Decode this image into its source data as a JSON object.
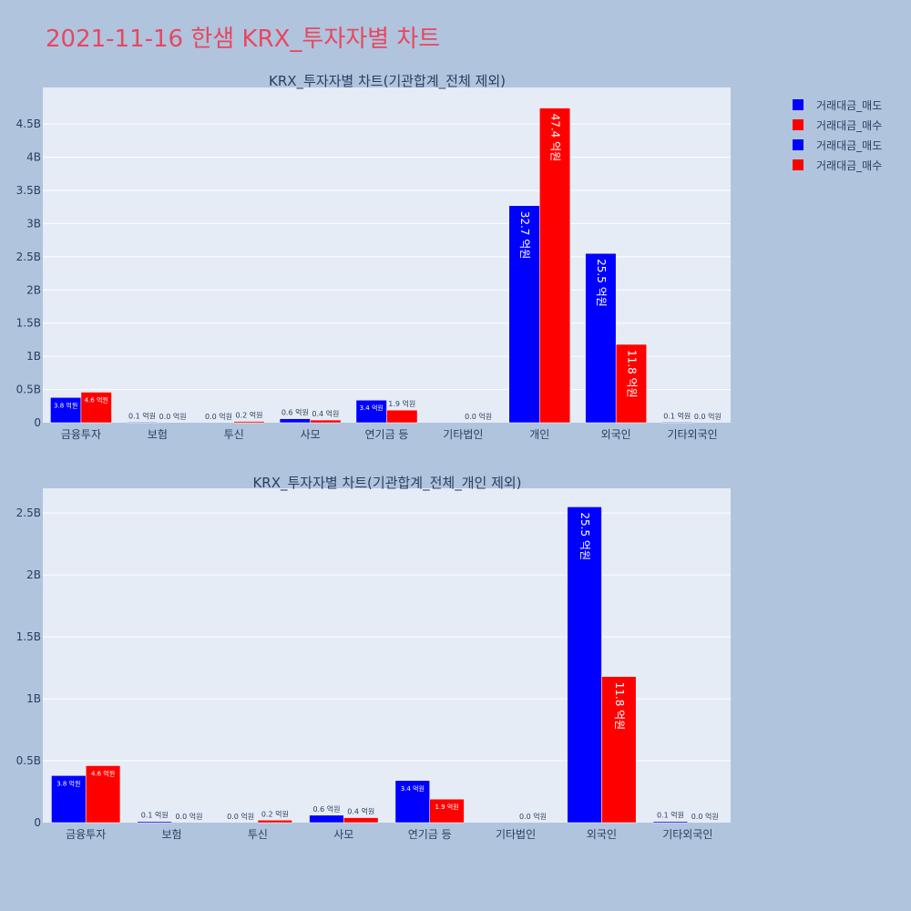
{
  "page": {
    "title": "2021-11-16 한샘 KRX_투자자별 차트"
  },
  "legend": [
    {
      "label": "거래대금_매도",
      "color": "#0000ff"
    },
    {
      "label": "거래대금_매수",
      "color": "#ff0000"
    },
    {
      "label": "거래대금_매도",
      "color": "#0000ff"
    },
    {
      "label": "거래대금_매수",
      "color": "#ff0000"
    }
  ],
  "chart_data": [
    {
      "type": "bar",
      "title": "KRX_투자자별 차트(기관합계_전체 제외)",
      "categories": [
        "금융투자",
        "보험",
        "투신",
        "사모",
        "연기금 등",
        "기타법인",
        "개인",
        "외국인",
        "기타외국인"
      ],
      "ylim": [
        0,
        5.05
      ],
      "yticks": [
        0,
        0.5,
        1,
        1.5,
        2,
        2.5,
        3,
        3.5,
        4,
        4.5
      ],
      "ytick_labels": [
        "0",
        "0.5B",
        "1B",
        "1.5B",
        "2B",
        "2.5B",
        "3B",
        "3.5B",
        "4B",
        "4.5B"
      ],
      "grid": true,
      "series": [
        {
          "name": "거래대금_매도",
          "color": "#0000ff",
          "values": [
            0.38,
            0.01,
            0.0,
            0.06,
            0.34,
            0.0,
            3.27,
            2.55,
            0.01
          ],
          "labels": [
            "3.8 억원",
            "0.1 억원",
            "0.0 억원",
            "0.6 억원",
            "3.4 억원",
            "",
            "32.7 억원",
            "25.5 억원",
            "0.1 억원"
          ]
        },
        {
          "name": "거래대금_매수",
          "color": "#ff0000",
          "values": [
            0.46,
            0.0,
            0.02,
            0.04,
            0.19,
            0.0,
            4.74,
            1.18,
            0.0
          ],
          "labels": [
            "4.6 억원",
            "0.0 억원",
            "0.2 억원",
            "0.4 억원",
            "1.9 억원",
            "0.0 억원",
            "47.4 억원",
            "11.8 억원",
            "0.0 억원"
          ]
        }
      ]
    },
    {
      "type": "bar",
      "title": "KRX_투자자별 차트(기관합계_전체_개인 제외)",
      "categories": [
        "금융투자",
        "보험",
        "투신",
        "사모",
        "연기금 등",
        "기타법인",
        "외국인",
        "기타외국인"
      ],
      "ylim": [
        0,
        2.7
      ],
      "yticks": [
        0,
        0.5,
        1,
        1.5,
        2,
        2.5
      ],
      "ytick_labels": [
        "0",
        "0.5B",
        "1B",
        "1.5B",
        "2B",
        "2.5B"
      ],
      "grid": true,
      "series": [
        {
          "name": "거래대금_매도",
          "color": "#0000ff",
          "values": [
            0.38,
            0.01,
            0.0,
            0.06,
            0.34,
            0.0,
            2.55,
            0.01
          ],
          "labels": [
            "3.8 억원",
            "0.1 억원",
            "0.0 억원",
            "0.6 억원",
            "3.4 억원",
            "",
            "25.5 억원",
            "0.1 억원"
          ]
        },
        {
          "name": "거래대금_매수",
          "color": "#ff0000",
          "values": [
            0.46,
            0.0,
            0.02,
            0.04,
            0.19,
            0.0,
            1.18,
            0.0
          ],
          "labels": [
            "4.6 억원",
            "0.0 억원",
            "0.2 억원",
            "0.4 억원",
            "1.9 억원",
            "0.0 억원",
            "11.8 억원",
            "0.0 억원"
          ]
        }
      ]
    }
  ]
}
